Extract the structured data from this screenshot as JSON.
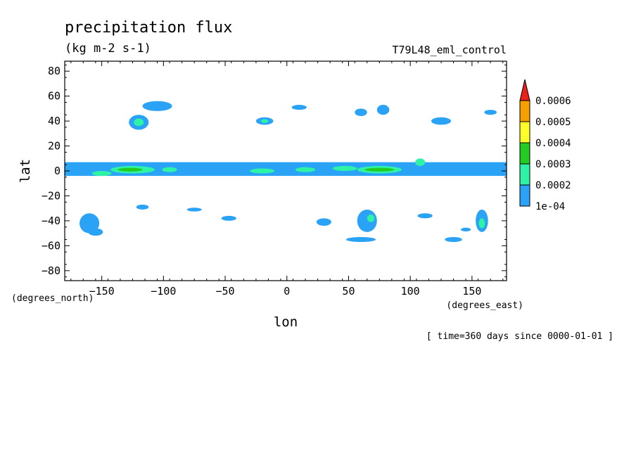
{
  "header": {
    "title": "precipitation flux",
    "units": "(kg m-2 s-1)",
    "dataset": "T79L48_eml_control"
  },
  "footer": {
    "time": "[ time=360 days since 0000-01-01 ]"
  },
  "chart_data": {
    "type": "heatmap",
    "xlabel": "lon",
    "ylabel": "lat",
    "x_units": "(degrees_east)",
    "y_units": "(degrees_north)",
    "xlim": [
      -180,
      178
    ],
    "ylim": [
      -88,
      88
    ],
    "x_ticks": [
      -150,
      -100,
      -50,
      0,
      50,
      100,
      150
    ],
    "y_ticks": [
      80,
      60,
      40,
      20,
      0,
      -20,
      -40,
      -60,
      -80
    ],
    "x_tick_labels": [
      "−150",
      "−100",
      "−50",
      "0",
      "50",
      "100",
      "150"
    ],
    "y_tick_labels": [
      "80",
      "60",
      "40",
      "20",
      "0",
      "−20",
      "−40",
      "−60",
      "−80"
    ],
    "colorbar": {
      "levels": [
        "0.0006",
        "0.0005",
        "0.0004",
        "0.0003",
        "0.0002",
        "1e-04"
      ],
      "colors": [
        "#e8221b",
        "#f5a000",
        "#ffff2a",
        "#22cc22",
        "#2ef2a6",
        "#2aa3f6"
      ],
      "extend": "max"
    },
    "features": [
      {
        "level": 0,
        "type": "band",
        "lon": [
          -180,
          178
        ],
        "lat_min": -4,
        "lat_max": 7
      },
      {
        "level": 1,
        "type": "blob",
        "lon": -150,
        "lat": -2,
        "rlon": 8,
        "rlat": 2
      },
      {
        "level": 1,
        "type": "blob",
        "lon": -125,
        "lat": 1,
        "rlon": 18,
        "rlat": 3
      },
      {
        "level": 2,
        "type": "blob",
        "lon": -127,
        "lat": 1,
        "rlon": 10,
        "rlat": 1.5
      },
      {
        "level": 1,
        "type": "blob",
        "lon": -95,
        "lat": 1,
        "rlon": 6,
        "rlat": 2
      },
      {
        "level": 1,
        "type": "blob",
        "lon": -20,
        "lat": 0,
        "rlon": 10,
        "rlat": 2
      },
      {
        "level": 1,
        "type": "blob",
        "lon": 15,
        "lat": 1,
        "rlon": 8,
        "rlat": 2
      },
      {
        "level": 1,
        "type": "blob",
        "lon": 47,
        "lat": 2,
        "rlon": 10,
        "rlat": 2
      },
      {
        "level": 1,
        "type": "blob",
        "lon": 75,
        "lat": 1,
        "rlon": 18,
        "rlat": 3
      },
      {
        "level": 2,
        "type": "blob",
        "lon": 75,
        "lat": 1,
        "rlon": 12,
        "rlat": 1.5
      },
      {
        "level": 1,
        "type": "blob",
        "lon": 108,
        "lat": 7,
        "rlon": 4,
        "rlat": 3
      },
      {
        "level": 0,
        "type": "blob",
        "lon": -120,
        "lat": 39,
        "rlon": 8,
        "rlat": 6
      },
      {
        "level": 1,
        "type": "blob",
        "lon": -120,
        "lat": 39,
        "rlon": 4,
        "rlat": 3
      },
      {
        "level": 0,
        "type": "blob",
        "lon": -105,
        "lat": 52,
        "rlon": 12,
        "rlat": 4
      },
      {
        "level": 0,
        "type": "blob",
        "lon": -18,
        "lat": 40,
        "rlon": 7,
        "rlat": 3
      },
      {
        "level": 1,
        "type": "blob",
        "lon": -18,
        "lat": 40,
        "rlon": 3,
        "rlat": 1.5
      },
      {
        "level": 0,
        "type": "blob",
        "lon": 10,
        "lat": 51,
        "rlon": 6,
        "rlat": 2
      },
      {
        "level": 0,
        "type": "blob",
        "lon": 60,
        "lat": 47,
        "rlon": 5,
        "rlat": 3
      },
      {
        "level": 0,
        "type": "blob",
        "lon": 78,
        "lat": 49,
        "rlon": 5,
        "rlat": 4
      },
      {
        "level": 0,
        "type": "blob",
        "lon": 125,
        "lat": 40,
        "rlon": 8,
        "rlat": 3
      },
      {
        "level": 0,
        "type": "blob",
        "lon": 165,
        "lat": 47,
        "rlon": 5,
        "rlat": 2
      },
      {
        "level": 0,
        "type": "blob",
        "lon": -160,
        "lat": -42,
        "rlon": 8,
        "rlat": 8
      },
      {
        "level": 0,
        "type": "blob",
        "lon": -155,
        "lat": -49,
        "rlon": 6,
        "rlat": 3
      },
      {
        "level": 0,
        "type": "blob",
        "lon": -117,
        "lat": -29,
        "rlon": 5,
        "rlat": 2
      },
      {
        "level": 0,
        "type": "blob",
        "lon": -75,
        "lat": -31,
        "rlon": 6,
        "rlat": 1.5
      },
      {
        "level": 0,
        "type": "blob",
        "lon": -47,
        "lat": -38,
        "rlon": 6,
        "rlat": 2
      },
      {
        "level": 0,
        "type": "blob",
        "lon": 30,
        "lat": -41,
        "rlon": 6,
        "rlat": 3
      },
      {
        "level": 0,
        "type": "blob",
        "lon": 65,
        "lat": -40,
        "rlon": 8,
        "rlat": 9
      },
      {
        "level": 1,
        "type": "blob",
        "lon": 68,
        "lat": -38,
        "rlon": 3,
        "rlat": 3
      },
      {
        "level": 0,
        "type": "blob",
        "lon": 60,
        "lat": -55,
        "rlon": 12,
        "rlat": 2
      },
      {
        "level": 0,
        "type": "blob",
        "lon": 112,
        "lat": -36,
        "rlon": 6,
        "rlat": 2
      },
      {
        "level": 0,
        "type": "blob",
        "lon": 135,
        "lat": -55,
        "rlon": 7,
        "rlat": 2
      },
      {
        "level": 0,
        "type": "blob",
        "lon": 158,
        "lat": -40,
        "rlon": 5,
        "rlat": 9
      },
      {
        "level": 1,
        "type": "blob",
        "lon": 158,
        "lat": -42,
        "rlon": 2.5,
        "rlat": 4
      },
      {
        "level": 0,
        "type": "blob",
        "lon": 145,
        "lat": -47,
        "rlon": 4,
        "rlat": 1.5
      }
    ]
  }
}
